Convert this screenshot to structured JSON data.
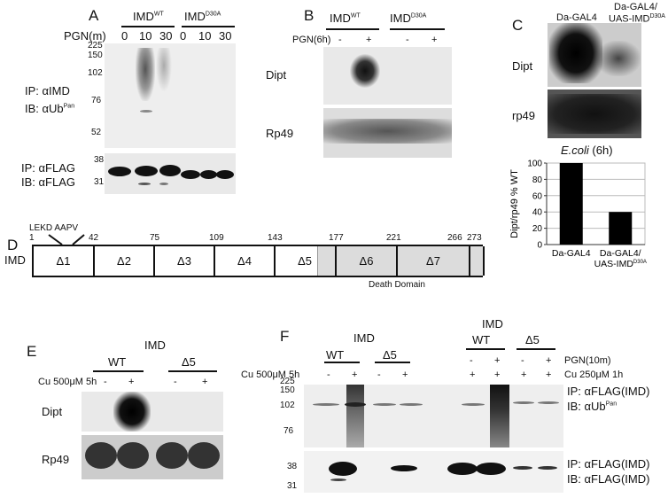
{
  "panelA": {
    "label": "A",
    "groups": [
      {
        "name": "IMD",
        "sup": "WT"
      },
      {
        "name": "IMD",
        "sup": "D30A"
      }
    ],
    "treatment": "PGN(m)",
    "lanes": [
      "0",
      "10",
      "30",
      "0",
      "10",
      "30"
    ],
    "upper_markers": [
      "225",
      "150",
      "102",
      "76",
      "52"
    ],
    "upper_ip": "IP: αIMD",
    "upper_ib": "IB: αUb",
    "upper_ib_sup": "Pan",
    "lower_markers": [
      "38",
      "31"
    ],
    "lower_ip": "IP: αFLAG",
    "lower_ib": "IB: αFLAG"
  },
  "panelB": {
    "label": "B",
    "groups": [
      {
        "name": "IMD",
        "sup": "WT"
      },
      {
        "name": "IMD",
        "sup": "D30A"
      }
    ],
    "treatment": "PGN(6h)",
    "lanes": [
      "-",
      "+",
      "-",
      "+"
    ],
    "rows": [
      "Dipt",
      "Rp49"
    ]
  },
  "panelC": {
    "label": "C",
    "columns": [
      "Da-GAL4",
      "Da-GAL4/",
      "UAS-IMD"
    ],
    "column_sup": "D30A",
    "rows": [
      "Dipt",
      "rp49"
    ],
    "condition": "E.coli",
    "condition_suffix": " (6h)",
    "chart_data": {
      "type": "bar",
      "categories": [
        "Da-GAL4",
        "Da-GAL4/UAS-IMD D30A"
      ],
      "category_lines": [
        [
          "Da-GAL4"
        ],
        [
          "Da-GAL4/",
          "UAS-IMD"
        ]
      ],
      "values": [
        100,
        40
      ],
      "ylabel": "Dipt/rp49 % WT",
      "ylim": [
        0,
        100
      ],
      "yticks": [
        "0",
        "20",
        "40",
        "60",
        "80",
        "100"
      ],
      "grid": true,
      "bar_color": "#000000"
    }
  },
  "panelD": {
    "label": "D",
    "protein": "IMD",
    "motif": "LEKD AAPV",
    "positions": [
      "1",
      "42",
      "75",
      "109",
      "143",
      "177",
      "221",
      "266",
      "273"
    ],
    "segments": [
      "Δ1",
      "Δ2",
      "Δ3",
      "Δ4",
      "Δ5",
      "Δ6",
      "Δ7"
    ],
    "domain": "Death Domain",
    "domain_color": "#dcdcdc"
  },
  "panelE": {
    "label": "E",
    "title": "IMD",
    "groups": [
      "WT",
      "Δ5"
    ],
    "treatment": "Cu 500μM 5h",
    "lanes": [
      "-",
      "+",
      "-",
      "+"
    ],
    "rows": [
      "Dipt",
      "Rp49"
    ]
  },
  "panelF": {
    "label": "F",
    "left": {
      "title": "IMD",
      "groups": [
        "WT",
        "Δ5"
      ],
      "treatment": "Cu 500μM 5h",
      "lanes": [
        "-",
        "+",
        "-",
        "+"
      ]
    },
    "right": {
      "title": "IMD",
      "groups": [
        "WT",
        "Δ5"
      ],
      "pgn_label": "PGN(10m)",
      "pgn_lanes": [
        "-",
        "+",
        "-",
        "+"
      ],
      "cu_label": "Cu 250μM 1h",
      "cu_lanes": [
        "+",
        "+",
        "+",
        "+"
      ]
    },
    "upper_markers": [
      "225",
      "150",
      "102",
      "76"
    ],
    "upper_ip": "IP: αFLAG(IMD)",
    "upper_ib": "IB: αUb",
    "upper_ib_sup": "Pan",
    "lower_markers": [
      "38",
      "31"
    ],
    "lower_ip": "IP: αFLAG(IMD)",
    "lower_ib": "IB: αFLAG(IMD)"
  }
}
